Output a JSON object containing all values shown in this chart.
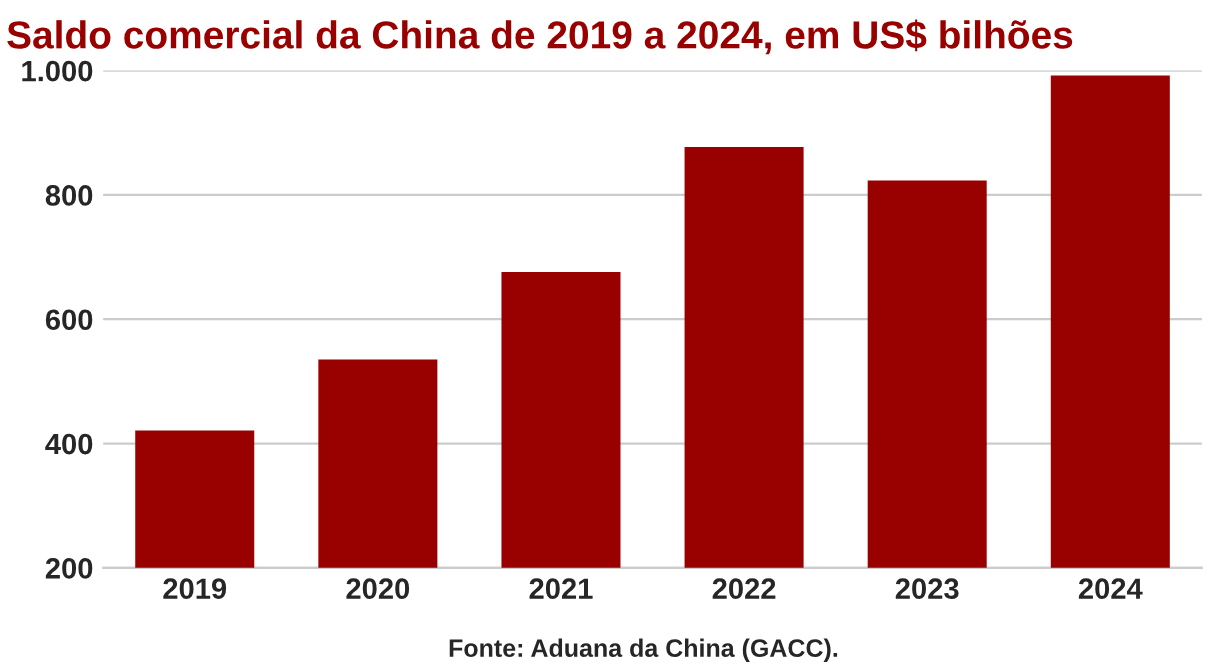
{
  "chart_data": {
    "type": "bar",
    "title": "Saldo comercial da China de 2019 a 2024, em US$ bilhões",
    "categories": [
      "2019",
      "2020",
      "2021",
      "2022",
      "2023",
      "2024"
    ],
    "values": [
      421,
      535,
      676,
      877,
      823,
      992
    ],
    "color": "#990000",
    "ylim": [
      200,
      1000
    ],
    "yticks": [
      200,
      400,
      600,
      800,
      {
        "value": 1000,
        "label": "1.000"
      }
    ],
    "grid": "y",
    "annotations": [
      "Fonte: Aduana da China (GACC)."
    ]
  }
}
